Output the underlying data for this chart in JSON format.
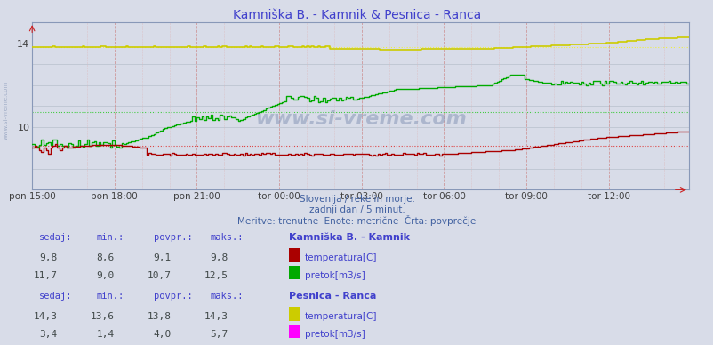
{
  "title": "Kamniška B. - Kamnik & Pesnica - Ranca",
  "title_color": "#4040cc",
  "bg_color": "#d8dce8",
  "plot_bg_color": "#d8dce8",
  "watermark": "www.si-vreme.com",
  "subtitle1": "Slovenija / reke in morje.",
  "subtitle2": "zadnji dan / 5 minut.",
  "subtitle3": "Meritve: trenutne  Enote: metrične  Črta: povprečje",
  "subtitle_color": "#4060a0",
  "xlabels": [
    "pon 15:00",
    "pon 18:00",
    "pon 21:00",
    "tor 00:00",
    "tor 03:00",
    "tor 06:00",
    "tor 09:00",
    "tor 12:00"
  ],
  "ylim": [
    7.0,
    15.0
  ],
  "yticks": [
    10,
    14
  ],
  "num_points": 288,
  "kamnik_temp_min": 8.6,
  "kamnik_temp_max": 9.8,
  "kamnik_temp_avg": 9.1,
  "kamnik_temp_current": 9.8,
  "kamnik_flow_min": 9.0,
  "kamnik_flow_max": 12.5,
  "kamnik_flow_avg": 10.7,
  "kamnik_flow_current": 11.7,
  "pesnica_temp_min": 13.6,
  "pesnica_temp_max": 14.3,
  "pesnica_temp_avg": 13.8,
  "pesnica_temp_current": 14.3,
  "pesnica_flow_min": 1.4,
  "pesnica_flow_max": 5.7,
  "pesnica_flow_avg": 4.0,
  "pesnica_flow_current": 3.4,
  "color_kamnik_temp": "#aa0000",
  "color_kamnik_flow": "#00aa00",
  "color_pesnica_temp": "#cccc00",
  "color_pesnica_flow": "#ff00ff",
  "color_avg_kamnik_temp": "#dd4444",
  "color_avg_kamnik_flow": "#44cc44",
  "color_avg_pesnica_temp": "#eeee44",
  "color_avg_pesnica_flow": "#ff88ff",
  "legend_text_color": "#4040cc",
  "table_value_color": "#404848",
  "station1": "Kamniška B. - Kamnik",
  "station2": "Pesnica - Ranca",
  "label_temp": "temperatura[C]",
  "label_flow": "pretok[m3/s]",
  "table_headers": [
    "sedaj:",
    "min.:",
    "povpr.:",
    "maks.:"
  ],
  "watermark_color": "#8898b8",
  "axis_color": "#8898b8",
  "vgrid_major_color": "#cc8888",
  "vgrid_minor_color": "#ddaaaa",
  "hgrid_color": "#b8c0cc"
}
